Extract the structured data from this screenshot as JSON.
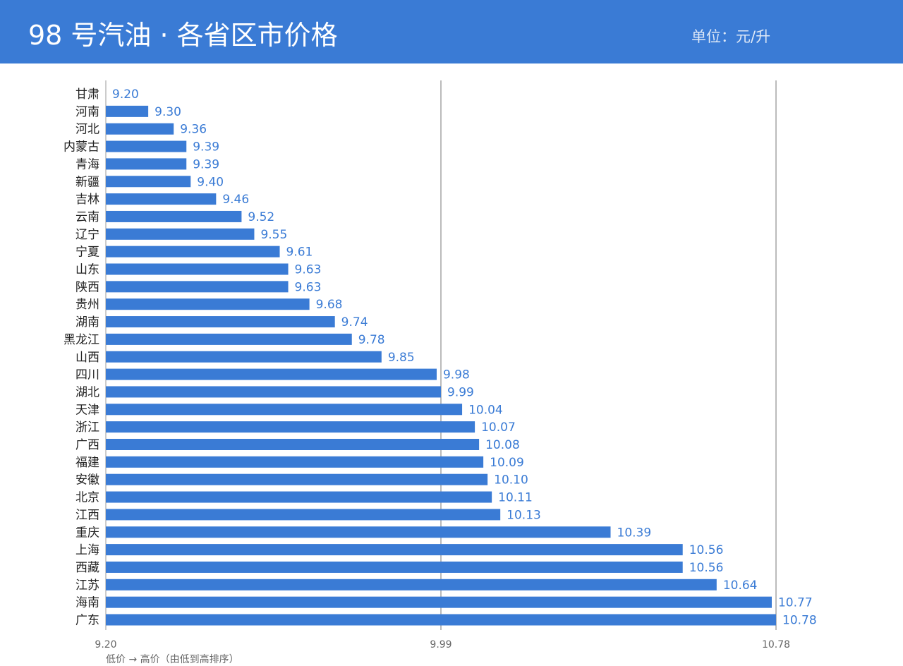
{
  "header": {
    "title": "98 号汽油 · 各省区市价格",
    "unit": "单位：元/升"
  },
  "footnote": "低价 → 高价（由低到高排序）",
  "colors": {
    "header_bg": "#3a7bd5",
    "bar": "#3a7bd5",
    "value_label": "#3a7bd5",
    "gridline": "#777777"
  },
  "chart_data": {
    "type": "bar",
    "orientation": "horizontal",
    "categories": [
      "甘肃",
      "河南",
      "河北",
      "内蒙古",
      "青海",
      "新疆",
      "吉林",
      "云南",
      "辽宁",
      "宁夏",
      "山东",
      "陕西",
      "贵州",
      "湖南",
      "黑龙江",
      "山西",
      "四川",
      "湖北",
      "天津",
      "浙江",
      "广西",
      "福建",
      "安徽",
      "北京",
      "江西",
      "重庆",
      "上海",
      "西藏",
      "江苏",
      "海南",
      "广东"
    ],
    "values": [
      9.2,
      9.3,
      9.36,
      9.39,
      9.39,
      9.4,
      9.46,
      9.52,
      9.55,
      9.61,
      9.63,
      9.63,
      9.68,
      9.74,
      9.78,
      9.85,
      9.98,
      9.99,
      10.04,
      10.07,
      10.08,
      10.09,
      10.1,
      10.11,
      10.13,
      10.39,
      10.56,
      10.56,
      10.64,
      10.77,
      10.78
    ],
    "value_labels": [
      "9.20",
      "9.30",
      "9.36",
      "9.39",
      "9.39",
      "9.40",
      "9.46",
      "9.52",
      "9.55",
      "9.61",
      "9.63",
      "9.63",
      "9.68",
      "9.74",
      "9.78",
      "9.85",
      "9.98",
      "9.99",
      "10.04",
      "10.07",
      "10.08",
      "10.09",
      "10.10",
      "10.11",
      "10.13",
      "10.39",
      "10.56",
      "10.56",
      "10.64",
      "10.77",
      "10.78"
    ],
    "xlim": [
      9.2,
      10.78
    ],
    "xticks": [
      9.2,
      9.99,
      10.78
    ],
    "xtick_labels": [
      "9.20",
      "9.99",
      "10.78"
    ],
    "grid": true,
    "legend": "none"
  }
}
